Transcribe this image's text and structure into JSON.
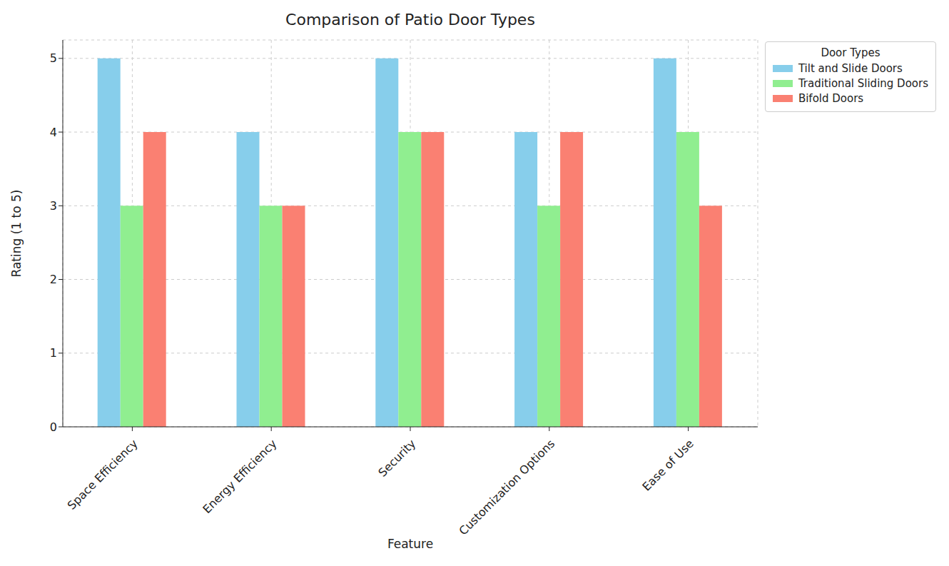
{
  "chart_data": {
    "type": "bar",
    "title": "Comparison of Patio Door Types",
    "x_label": "Feature",
    "y_label": "Rating (1 to 5)",
    "legend_title": "Door Types",
    "categories": [
      "Space Efficiency",
      "Energy Efficiency",
      "Security",
      "Customization Options",
      "Ease of Use"
    ],
    "series": [
      {
        "name": "Tilt and Slide Doors",
        "color": "#87ceeb",
        "values": [
          5,
          4,
          5,
          4,
          5
        ]
      },
      {
        "name": "Traditional Sliding Doors",
        "color": "#90ee90",
        "values": [
          3,
          3,
          4,
          3,
          4
        ]
      },
      {
        "name": "Bifold Doors",
        "color": "#fa8072",
        "values": [
          4,
          3,
          4,
          4,
          3
        ]
      }
    ],
    "ylim": [
      0,
      5.25
    ],
    "yticks": [
      0,
      1,
      2,
      3,
      4,
      5
    ],
    "grid": true,
    "legend": "upper right"
  }
}
